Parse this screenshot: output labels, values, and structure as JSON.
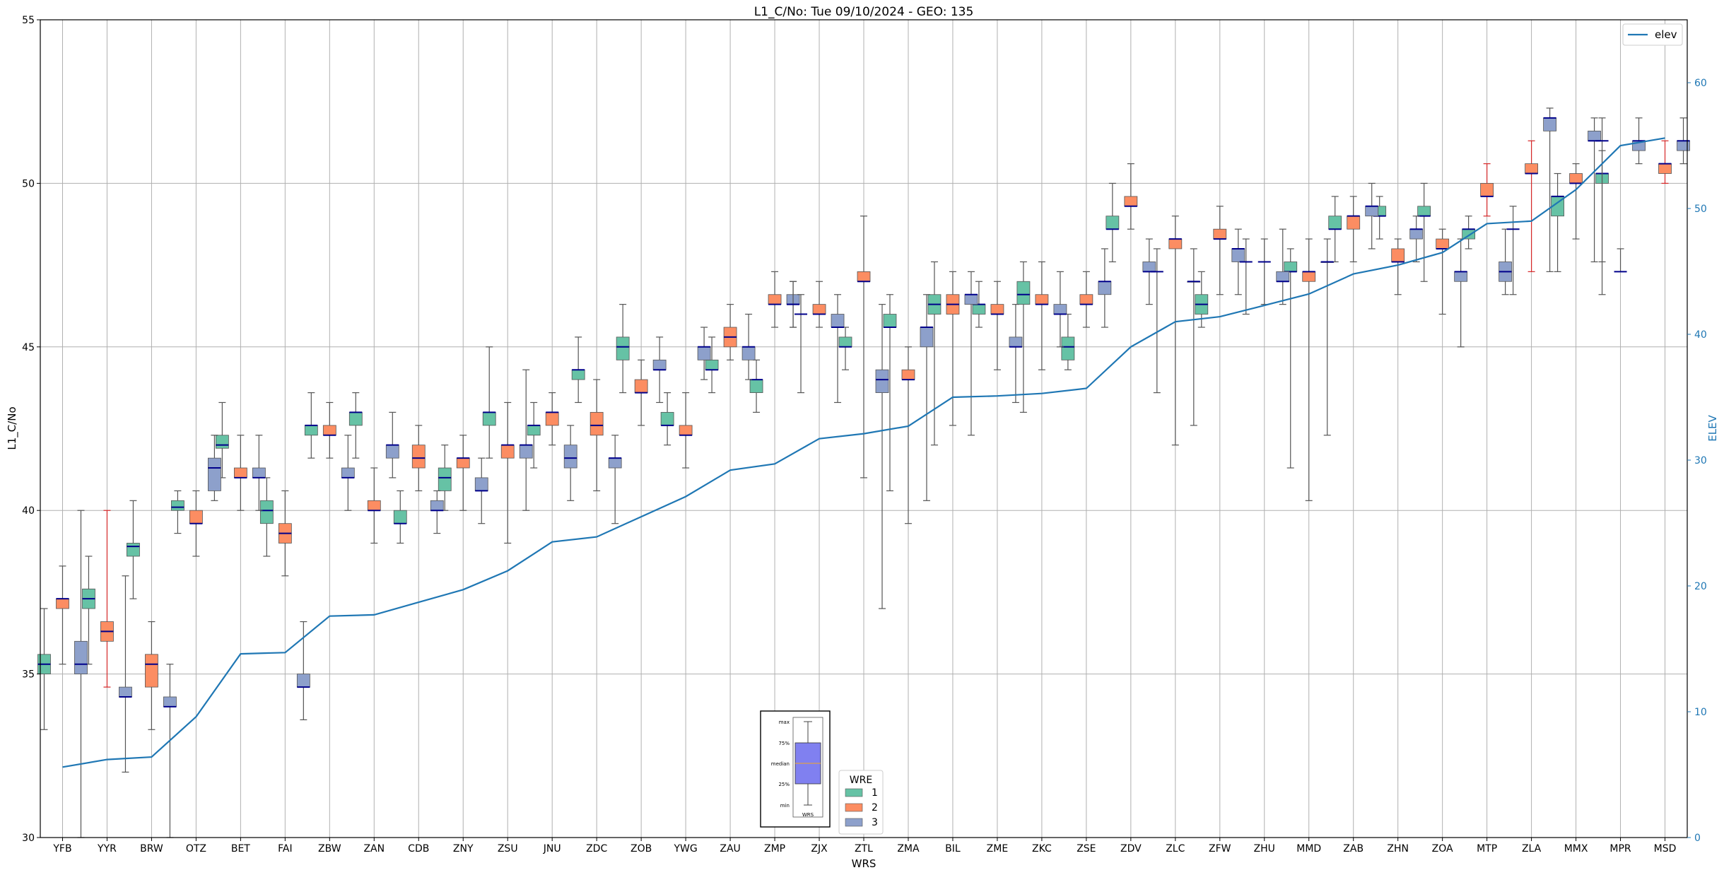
{
  "chart_data": {
    "type": "box",
    "title": "L1_C/No: Tue 09/10/2024 - GEO: 135",
    "xlabel": "WRS",
    "ylabel": "L1_C/No",
    "y2label": "ELEV",
    "ylim": [
      30,
      55
    ],
    "y2lim": [
      0,
      65
    ],
    "yticks": [
      30,
      35,
      40,
      45,
      50,
      55
    ],
    "y2ticks": [
      0,
      10,
      20,
      30,
      40,
      50,
      60
    ],
    "grid": true,
    "categories": [
      "YFB",
      "YYR",
      "BRW",
      "OTZ",
      "BET",
      "FAI",
      "ZBW",
      "ZAN",
      "CDB",
      "ZNY",
      "ZSU",
      "JNU",
      "ZDC",
      "ZOB",
      "YWG",
      "ZAU",
      "ZMP",
      "ZJX",
      "ZTL",
      "ZMA",
      "BIL",
      "ZME",
      "ZKC",
      "ZSE",
      "ZDV",
      "ZLC",
      "ZFW",
      "ZHU",
      "MMD",
      "ZAB",
      "ZHN",
      "ZOA",
      "MTP",
      "ZLA",
      "MMX",
      "MPR",
      "MSD"
    ],
    "colors": {
      "wre1": "#66c2a5",
      "wre2": "#fc8d62",
      "wre3": "#8da0cb",
      "elev": "#1f77b4",
      "median": "#00008b",
      "red_whisker": "#d62728"
    },
    "series": [
      {
        "name": "1",
        "boxes": [
          [
            33.3,
            35.0,
            35.3,
            35.6,
            37.0
          ],
          [
            35.3,
            37.0,
            37.3,
            37.6,
            38.6
          ],
          [
            37.3,
            38.6,
            38.9,
            39.0,
            40.3
          ],
          [
            39.3,
            40.0,
            40.1,
            40.3,
            40.6
          ],
          [
            41.0,
            41.9,
            42.0,
            42.3,
            43.3
          ],
          [
            38.6,
            39.6,
            40.0,
            40.3,
            41.0
          ],
          [
            41.6,
            42.3,
            42.6,
            42.6,
            43.6
          ],
          [
            41.6,
            42.6,
            43.0,
            43.0,
            43.6
          ],
          [
            39.0,
            39.6,
            39.6,
            40.0,
            40.6
          ],
          [
            40.0,
            40.6,
            41.0,
            41.3,
            42.0
          ],
          [
            41.6,
            42.6,
            43.0,
            43.0,
            45.0
          ],
          [
            41.3,
            42.3,
            42.6,
            42.6,
            43.3
          ],
          [
            43.3,
            44.0,
            44.3,
            44.3,
            45.3
          ],
          [
            43.6,
            44.6,
            45.0,
            45.3,
            46.3
          ],
          [
            42.0,
            42.6,
            42.6,
            43.0,
            43.6
          ],
          [
            43.6,
            44.3,
            44.3,
            44.6,
            45.3
          ],
          [
            43.0,
            43.6,
            44.0,
            44.0,
            44.6
          ],
          null,
          [
            44.3,
            45.0,
            45.0,
            45.3,
            45.6
          ],
          [
            40.6,
            45.6,
            45.6,
            46.0,
            46.6
          ],
          [
            42.0,
            46.0,
            46.3,
            46.6,
            47.6
          ],
          [
            45.6,
            46.0,
            46.3,
            46.3,
            47.0
          ],
          [
            43.0,
            46.3,
            46.6,
            47.0,
            47.6
          ],
          [
            44.3,
            44.6,
            45.0,
            45.3,
            46.0
          ],
          [
            47.6,
            48.6,
            48.6,
            49.0,
            50.0
          ],
          null,
          [
            45.6,
            46.0,
            46.3,
            46.6,
            47.3
          ],
          null,
          [
            41.3,
            47.3,
            47.3,
            47.6,
            48.0
          ],
          [
            47.6,
            48.6,
            48.6,
            49.0,
            49.6
          ],
          [
            48.3,
            49.0,
            49.0,
            49.3,
            49.6
          ],
          [
            47.0,
            49.0,
            49.0,
            49.3,
            50.0
          ],
          [
            48.0,
            48.3,
            48.6,
            48.6,
            49.0
          ],
          null,
          [
            47.3,
            49.0,
            49.6,
            49.6,
            50.3
          ],
          [
            46.6,
            50.0,
            50.3,
            50.3,
            51.0
          ],
          null
        ]
      },
      {
        "name": "2",
        "boxes": [
          [
            35.3,
            37.0,
            37.3,
            37.3,
            38.3
          ],
          [
            34.6,
            36.0,
            36.3,
            36.6,
            40.0
          ],
          [
            33.3,
            34.6,
            35.3,
            35.6,
            36.6
          ],
          [
            38.6,
            39.6,
            39.6,
            40.0,
            40.6
          ],
          [
            40.0,
            41.0,
            41.0,
            41.3,
            42.3
          ],
          [
            38.0,
            39.0,
            39.3,
            39.6,
            40.6
          ],
          [
            41.6,
            42.3,
            42.3,
            42.6,
            43.3
          ],
          [
            39.0,
            40.0,
            40.0,
            40.3,
            41.3
          ],
          [
            40.6,
            41.3,
            41.6,
            42.0,
            42.6
          ],
          [
            40.0,
            41.3,
            41.6,
            41.6,
            42.3
          ],
          [
            39.0,
            41.6,
            42.0,
            42.0,
            43.3
          ],
          [
            42.0,
            42.6,
            43.0,
            43.0,
            43.6
          ],
          [
            40.6,
            42.3,
            42.6,
            43.0,
            44.0
          ],
          [
            42.6,
            43.6,
            43.6,
            44.0,
            44.6
          ],
          [
            41.3,
            42.3,
            42.3,
            42.6,
            43.6
          ],
          [
            44.6,
            45.0,
            45.3,
            45.6,
            46.3
          ],
          [
            45.6,
            46.3,
            46.3,
            46.6,
            47.3
          ],
          [
            45.6,
            46.0,
            46.0,
            46.3,
            47.0
          ],
          [
            41.0,
            47.0,
            47.0,
            47.3,
            49.0
          ],
          [
            39.6,
            44.0,
            44.0,
            44.3,
            45.0
          ],
          [
            42.6,
            46.0,
            46.3,
            46.6,
            47.3
          ],
          [
            44.3,
            46.0,
            46.0,
            46.3,
            47.0
          ],
          [
            44.3,
            46.3,
            46.3,
            46.6,
            47.6
          ],
          [
            45.6,
            46.3,
            46.3,
            46.6,
            47.3
          ],
          [
            48.6,
            49.3,
            49.3,
            49.6,
            50.6
          ],
          [
            42.0,
            48.0,
            48.3,
            48.3,
            49.0
          ],
          [
            46.6,
            48.3,
            48.3,
            48.6,
            49.3
          ],
          null,
          [
            40.3,
            47.0,
            47.3,
            47.3,
            48.3
          ],
          [
            47.6,
            48.6,
            49.0,
            49.0,
            49.6
          ],
          [
            46.6,
            47.6,
            47.6,
            48.0,
            48.3
          ],
          [
            46.0,
            48.0,
            48.0,
            48.3,
            48.6
          ],
          [
            49.0,
            49.6,
            49.6,
            50.0,
            50.6
          ],
          [
            47.3,
            50.3,
            50.3,
            50.6,
            51.3
          ],
          [
            48.3,
            50.0,
            50.0,
            50.3,
            50.6
          ],
          null,
          [
            50.0,
            50.3,
            50.6,
            50.6,
            51.3
          ]
        ]
      },
      {
        "name": "3",
        "boxes": [
          [
            30.0,
            35.0,
            35.3,
            36.0,
            40.0
          ],
          [
            32.0,
            34.3,
            34.3,
            34.6,
            38.0
          ],
          [
            30.0,
            34.0,
            34.0,
            34.3,
            35.3
          ],
          [
            40.3,
            40.6,
            41.3,
            41.6,
            42.3
          ],
          [
            40.0,
            41.0,
            41.0,
            41.3,
            42.3
          ],
          [
            33.6,
            34.6,
            34.6,
            35.0,
            36.6
          ],
          [
            40.0,
            41.0,
            41.0,
            41.3,
            42.3
          ],
          [
            41.0,
            41.6,
            42.0,
            42.0,
            43.0
          ],
          [
            39.3,
            40.0,
            40.0,
            40.3,
            40.6
          ],
          [
            39.6,
            40.6,
            40.6,
            41.0,
            41.6
          ],
          [
            40.0,
            41.6,
            42.0,
            42.0,
            44.3
          ],
          [
            40.3,
            41.3,
            41.6,
            42.0,
            42.6
          ],
          [
            39.6,
            41.3,
            41.6,
            41.6,
            42.3
          ],
          [
            43.3,
            44.3,
            44.3,
            44.6,
            45.3
          ],
          [
            44.0,
            44.6,
            45.0,
            45.0,
            45.6
          ],
          [
            44.0,
            44.6,
            45.0,
            45.0,
            46.0
          ],
          [
            45.6,
            46.3,
            46.3,
            46.6,
            47.0
          ],
          [
            43.3,
            45.6,
            45.6,
            46.0,
            46.6
          ],
          [
            37.0,
            43.6,
            44.0,
            44.3,
            46.3
          ],
          [
            40.3,
            45.0,
            45.6,
            45.6,
            46.6
          ],
          [
            42.3,
            46.3,
            46.6,
            46.6,
            47.3
          ],
          [
            43.3,
            45.0,
            45.0,
            45.3,
            46.3
          ],
          [
            45.0,
            46.0,
            46.0,
            46.3,
            47.3
          ],
          [
            45.6,
            46.6,
            47.0,
            47.0,
            48.0
          ],
          [
            46.3,
            47.3,
            47.3,
            47.6,
            48.3
          ],
          [
            42.6,
            47.0,
            47.0,
            47.0,
            48.0
          ],
          [
            46.6,
            47.6,
            48.0,
            48.0,
            48.6
          ],
          [
            46.3,
            47.0,
            47.0,
            47.3,
            48.6
          ],
          [
            42.3,
            47.6,
            47.6,
            47.6,
            48.3
          ],
          [
            48.0,
            49.0,
            49.3,
            49.3,
            50.0
          ],
          [
            47.6,
            48.3,
            48.6,
            48.6,
            49.0
          ],
          [
            45.0,
            47.0,
            47.3,
            47.3,
            48.3
          ],
          [
            46.6,
            47.0,
            47.3,
            47.6,
            48.6
          ],
          [
            47.3,
            51.6,
            52.0,
            52.0,
            52.3
          ],
          [
            47.6,
            51.3,
            51.3,
            51.6,
            52.0
          ],
          [
            50.6,
            51.0,
            51.3,
            51.3,
            52.0
          ],
          [
            50.6,
            51.0,
            51.3,
            51.3,
            52.0
          ]
        ]
      }
    ],
    "extras": [
      {
        "series": "1",
        "category": "ZJX",
        "low": 43.6,
        "median": 46.0,
        "high": 46.6
      },
      {
        "series": "1",
        "category": "ZLC",
        "low": 43.6,
        "median": 47.3,
        "high": 48.0
      },
      {
        "series": "1",
        "category": "ZHU",
        "low": 46.0,
        "median": 47.6,
        "high": 48.3
      },
      {
        "series": "1",
        "category": "ZLA",
        "low": 46.6,
        "median": 48.6,
        "high": 49.3
      },
      {
        "series": "1",
        "category": "MPR",
        "low": 47.6,
        "median": 51.3,
        "high": 52.0
      },
      {
        "series": "2",
        "category": "ZHU",
        "low": 46.3,
        "median": 47.6,
        "high": 48.3
      },
      {
        "series": "2",
        "category": "MPR",
        "low": 47.3,
        "median": 47.3,
        "high": 48.0
      },
      {
        "series": "3",
        "category": "ZMP",
        "low": 45.6,
        "median": 46.3,
        "high": 47.0
      }
    ],
    "red_whiskers": [
      {
        "series": "2",
        "category": "YYR"
      },
      {
        "series": "2",
        "category": "MTP"
      },
      {
        "series": "2",
        "category": "ZLA"
      },
      {
        "series": "2",
        "category": "MPR"
      },
      {
        "series": "2",
        "category": "MSD"
      },
      {
        "series": "1",
        "category": "ZLA"
      }
    ],
    "elev": {
      "name": "elev",
      "values": [
        5.6,
        6.2,
        6.4,
        9.6,
        14.6,
        14.7,
        17.6,
        17.7,
        18.7,
        19.7,
        21.2,
        23.5,
        23.9,
        25.5,
        27.1,
        29.2,
        29.7,
        31.7,
        32.1,
        32.7,
        35.0,
        35.1,
        35.3,
        35.7,
        39.0,
        41.0,
        41.4,
        42.3,
        43.2,
        44.8,
        45.5,
        46.5,
        48.8,
        49.0,
        51.5,
        55.0,
        55.6
      ]
    },
    "legend": {
      "elev_label": "elev",
      "wre_title": "WRE",
      "entries": [
        "1",
        "2",
        "3"
      ]
    },
    "key_box": {
      "labels": [
        "max",
        "75%",
        "median",
        "25%",
        "min"
      ],
      "xlabel": "WRS"
    }
  }
}
